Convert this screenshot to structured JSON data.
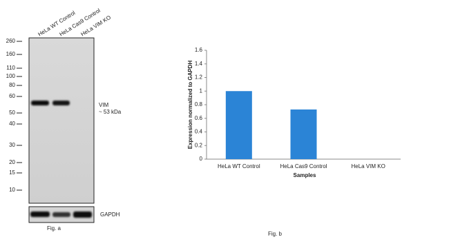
{
  "figure_a": {
    "lanes": [
      "HeLa WT Control",
      "HeLa Cas9 Control",
      "HeLa VIM KO"
    ],
    "markers": [
      260,
      160,
      110,
      100,
      80,
      60,
      50,
      40,
      30,
      20,
      15,
      10
    ],
    "target": "VIM",
    "target_size": "~ 53 kDa",
    "loading_control": "GAPDH",
    "caption": "Fig. a"
  },
  "chart_data": {
    "type": "bar",
    "caption": "Fig. b",
    "x_label": "Samples",
    "y_label": "Expression normalized to GAPDH",
    "categories": [
      "HeLa WT Control",
      "HeLa Cas9 Control",
      "HeLa VIM KO"
    ],
    "values": [
      1,
      0.73,
      0
    ],
    "color": "#2b84d6",
    "ylim": [
      0,
      1.6
    ],
    "yticks": [
      0,
      0.2,
      0.4,
      0.6,
      0.8,
      1,
      1.2,
      1.4,
      1.6
    ],
    "grid": false
  }
}
